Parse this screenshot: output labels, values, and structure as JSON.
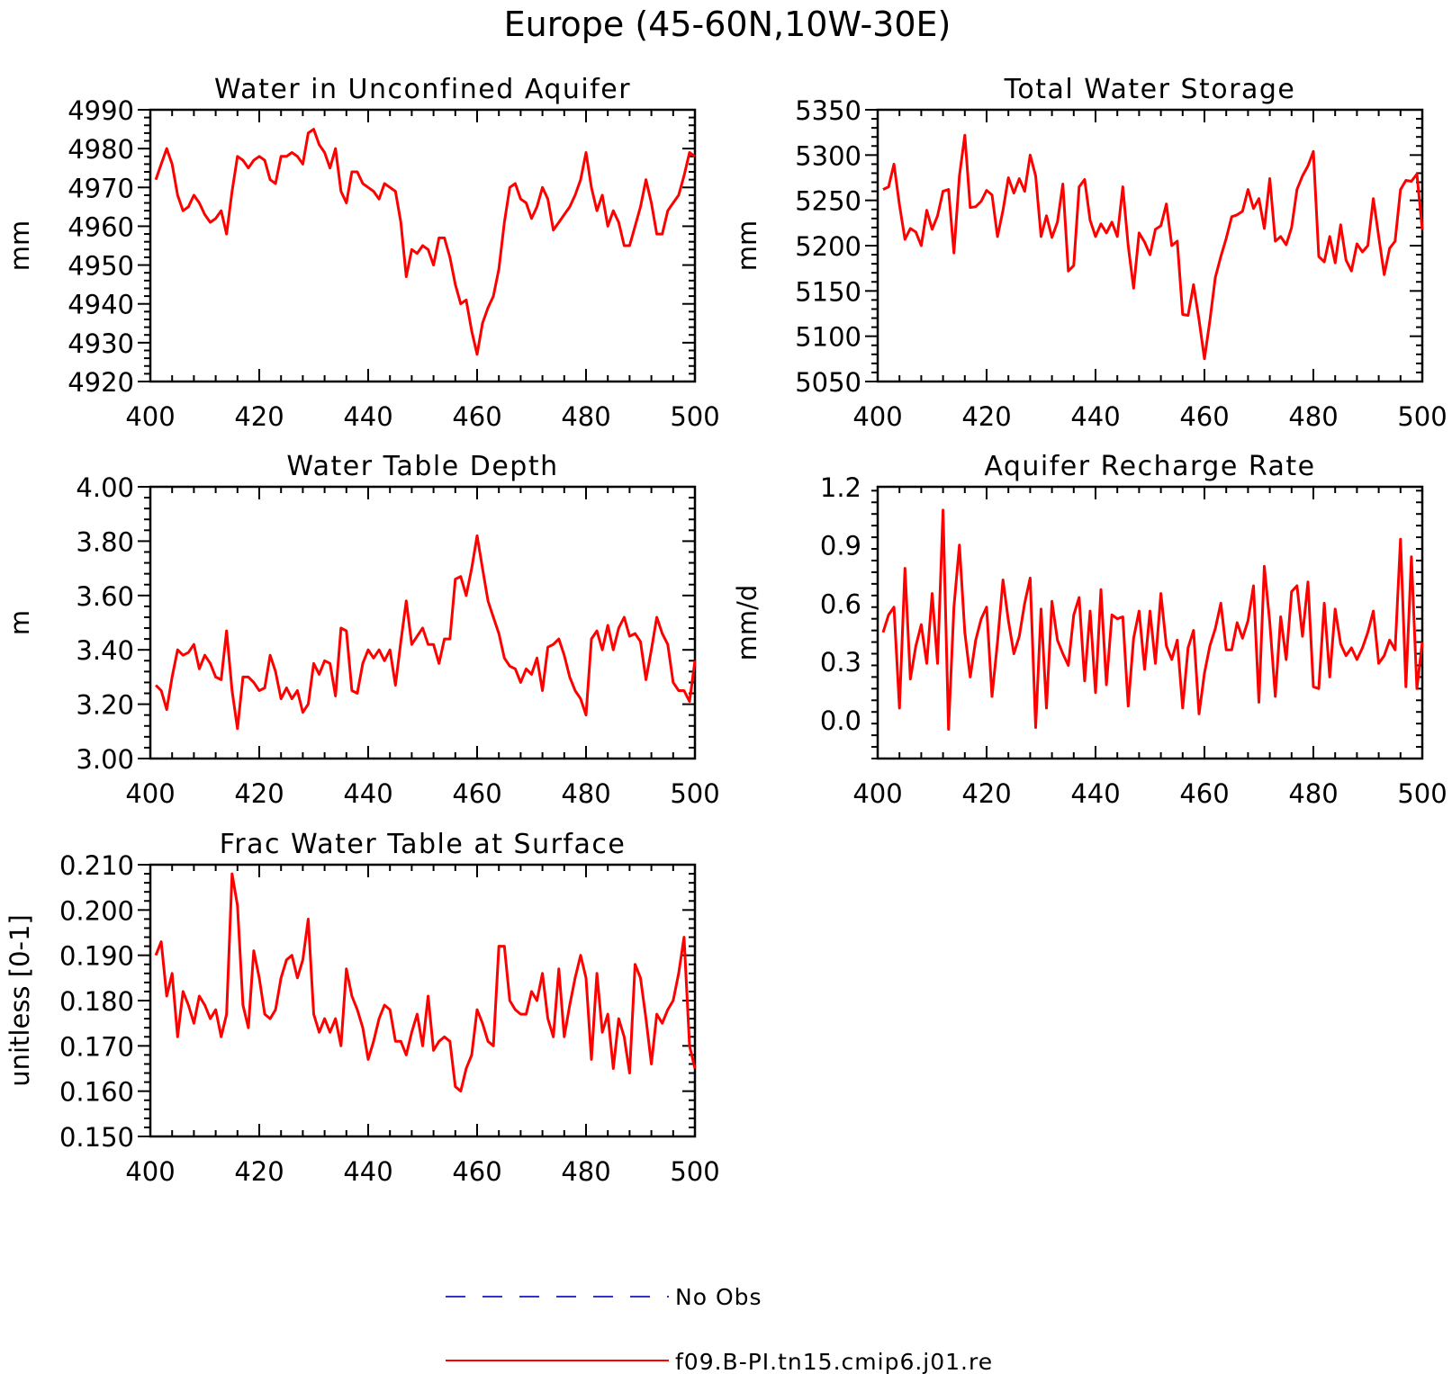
{
  "title": "Europe (45-60N,10W-30E)",
  "legend": [
    {
      "label": "No Obs",
      "color": "#3333cc",
      "dash": true
    },
    {
      "label": "f09.B-PI.tn15.cmip6.j01.re",
      "color": "#ff0000",
      "dash": false
    }
  ],
  "chart_data": [
    {
      "type": "line",
      "title": "Water in Unconfined Aquifer",
      "ylabel": "mm",
      "xlim": [
        400,
        500
      ],
      "ylim": [
        4920,
        4990
      ],
      "xticks": [
        400,
        420,
        440,
        460,
        480,
        500
      ],
      "yticks": [
        4920,
        4930,
        4940,
        4950,
        4960,
        4970,
        4980,
        4990
      ],
      "ytick_labels": [
        "4920",
        "4930",
        "4940",
        "4950",
        "4960",
        "4970",
        "4980",
        "4990"
      ],
      "x_start": 401,
      "series": [
        {
          "color": "#ff0000",
          "values": [
            4972,
            4976,
            4980,
            4976,
            4968,
            4964,
            4965,
            4968,
            4966,
            4963,
            4961,
            4962,
            4964,
            4958,
            4969,
            4978,
            4977,
            4975,
            4977,
            4978,
            4977,
            4972,
            4971,
            4978,
            4978,
            4979,
            4978,
            4976,
            4984,
            4985,
            4981,
            4979,
            4975,
            4980,
            4969,
            4966,
            4974,
            4974,
            4971,
            4970,
            4969,
            4967,
            4971,
            4970,
            4969,
            4961,
            4947,
            4954,
            4953,
            4955,
            4954,
            4950,
            4957,
            4957,
            4952,
            4945,
            4940,
            4941,
            4933,
            4927,
            4935,
            4939,
            4942,
            4949,
            4961,
            4970,
            4971,
            4967,
            4966,
            4962,
            4965,
            4970,
            4967,
            4959,
            4961,
            4963,
            4965,
            4968,
            4972,
            4979,
            4970,
            4964,
            4968,
            4960,
            4964,
            4961,
            4955,
            4955,
            4960,
            4965,
            4972,
            4966,
            4958,
            4958,
            4964,
            4966,
            4968,
            4973,
            4979,
            4978
          ]
        }
      ]
    },
    {
      "type": "line",
      "title": "Total Water Storage",
      "ylabel": "mm",
      "xlim": [
        400,
        500
      ],
      "ylim": [
        5050,
        5350
      ],
      "xticks": [
        400,
        420,
        440,
        460,
        480,
        500
      ],
      "yticks": [
        5050,
        5100,
        5150,
        5200,
        5250,
        5300,
        5350
      ],
      "ytick_labels": [
        "5050",
        "5100",
        "5150",
        "5200",
        "5250",
        "5300",
        "5350"
      ],
      "x_start": 401,
      "series": [
        {
          "color": "#ff0000",
          "values": [
            5262,
            5265,
            5290,
            5245,
            5207,
            5219,
            5215,
            5200,
            5239,
            5218,
            5233,
            5260,
            5262,
            5192,
            5277,
            5322,
            5242,
            5243,
            5249,
            5261,
            5256,
            5210,
            5239,
            5275,
            5258,
            5274,
            5260,
            5300,
            5277,
            5210,
            5233,
            5209,
            5226,
            5268,
            5172,
            5178,
            5265,
            5273,
            5228,
            5210,
            5224,
            5214,
            5226,
            5210,
            5265,
            5200,
            5153,
            5214,
            5204,
            5190,
            5218,
            5222,
            5246,
            5200,
            5205,
            5124,
            5123,
            5157,
            5118,
            5075,
            5117,
            5165,
            5188,
            5208,
            5232,
            5234,
            5238,
            5262,
            5241,
            5252,
            5219,
            5274,
            5205,
            5210,
            5201,
            5220,
            5262,
            5277,
            5288,
            5304,
            5188,
            5182,
            5210,
            5181,
            5223,
            5184,
            5172,
            5202,
            5193,
            5200,
            5252,
            5210,
            5168,
            5197,
            5205,
            5262,
            5272,
            5271,
            5279,
            5218
          ]
        }
      ]
    },
    {
      "type": "line",
      "title": "Water Table Depth",
      "ylabel": "m",
      "xlim": [
        400,
        500
      ],
      "ylim": [
        3.0,
        4.0
      ],
      "xticks": [
        400,
        420,
        440,
        460,
        480,
        500
      ],
      "yticks": [
        3.0,
        3.2,
        3.4,
        3.6,
        3.8,
        4.0
      ],
      "ytick_labels": [
        "3.00",
        "3.20",
        "3.40",
        "3.60",
        "3.80",
        "4.00"
      ],
      "x_start": 401,
      "series": [
        {
          "color": "#ff0000",
          "values": [
            3.27,
            3.25,
            3.18,
            3.3,
            3.4,
            3.38,
            3.39,
            3.42,
            3.33,
            3.38,
            3.35,
            3.3,
            3.29,
            3.47,
            3.25,
            3.11,
            3.3,
            3.3,
            3.28,
            3.25,
            3.26,
            3.38,
            3.32,
            3.22,
            3.26,
            3.22,
            3.25,
            3.17,
            3.2,
            3.35,
            3.31,
            3.36,
            3.35,
            3.23,
            3.48,
            3.47,
            3.25,
            3.24,
            3.35,
            3.4,
            3.37,
            3.4,
            3.36,
            3.4,
            3.27,
            3.43,
            3.58,
            3.42,
            3.45,
            3.48,
            3.42,
            3.42,
            3.35,
            3.44,
            3.44,
            3.66,
            3.67,
            3.6,
            3.7,
            3.82,
            3.7,
            3.58,
            3.52,
            3.46,
            3.37,
            3.34,
            3.33,
            3.28,
            3.33,
            3.31,
            3.37,
            3.25,
            3.41,
            3.42,
            3.44,
            3.38,
            3.3,
            3.25,
            3.22,
            3.16,
            3.44,
            3.47,
            3.4,
            3.49,
            3.4,
            3.48,
            3.52,
            3.45,
            3.46,
            3.43,
            3.29,
            3.4,
            3.52,
            3.46,
            3.42,
            3.28,
            3.25,
            3.25,
            3.21,
            3.36
          ]
        }
      ]
    },
    {
      "type": "line",
      "title": "Aquifer Recharge Rate",
      "ylabel": "mm/d",
      "xlim": [
        400,
        500
      ],
      "ylim": [
        -0.2,
        1.2
      ],
      "xticks": [
        400,
        420,
        440,
        460,
        480,
        500
      ],
      "yticks": [
        0.0,
        0.3,
        0.6,
        0.9,
        1.2
      ],
      "ytick_labels": [
        "0.0",
        "0.3",
        "0.6",
        "0.9",
        "1.2"
      ],
      "x_start": 401,
      "series": [
        {
          "color": "#ff0000",
          "values": [
            0.45,
            0.54,
            0.58,
            0.06,
            0.78,
            0.21,
            0.38,
            0.49,
            0.29,
            0.65,
            0.29,
            1.08,
            -0.05,
            0.58,
            0.9,
            0.45,
            0.22,
            0.41,
            0.52,
            0.58,
            0.12,
            0.4,
            0.72,
            0.51,
            0.34,
            0.43,
            0.6,
            0.73,
            -0.04,
            0.57,
            0.06,
            0.61,
            0.41,
            0.34,
            0.28,
            0.54,
            0.63,
            0.2,
            0.56,
            0.14,
            0.67,
            0.18,
            0.54,
            0.52,
            0.53,
            0.07,
            0.42,
            0.56,
            0.26,
            0.56,
            0.29,
            0.65,
            0.38,
            0.31,
            0.41,
            0.06,
            0.37,
            0.46,
            0.03,
            0.24,
            0.38,
            0.47,
            0.6,
            0.36,
            0.36,
            0.5,
            0.42,
            0.51,
            0.69,
            0.09,
            0.79,
            0.5,
            0.12,
            0.53,
            0.31,
            0.66,
            0.69,
            0.43,
            0.71,
            0.17,
            0.16,
            0.6,
            0.22,
            0.57,
            0.39,
            0.33,
            0.37,
            0.31,
            0.37,
            0.45,
            0.56,
            0.29,
            0.33,
            0.41,
            0.36,
            0.93,
            0.17,
            0.84,
            0.16,
            0.4
          ]
        }
      ]
    },
    {
      "type": "line",
      "title": "Frac Water Table at Surface",
      "ylabel": "unitless [0-1]",
      "xlim": [
        400,
        500
      ],
      "ylim": [
        0.15,
        0.21
      ],
      "xticks": [
        400,
        420,
        440,
        460,
        480,
        500
      ],
      "yticks": [
        0.15,
        0.16,
        0.17,
        0.18,
        0.19,
        0.2,
        0.21
      ],
      "ytick_labels": [
        "0.150",
        "0.160",
        "0.170",
        "0.180",
        "0.190",
        "0.200",
        "0.210"
      ],
      "x_start": 401,
      "series": [
        {
          "color": "#ff0000",
          "values": [
            0.19,
            0.193,
            0.181,
            0.186,
            0.172,
            0.182,
            0.179,
            0.175,
            0.181,
            0.179,
            0.176,
            0.178,
            0.172,
            0.177,
            0.208,
            0.201,
            0.179,
            0.174,
            0.191,
            0.185,
            0.177,
            0.176,
            0.178,
            0.185,
            0.189,
            0.19,
            0.185,
            0.189,
            0.198,
            0.177,
            0.173,
            0.176,
            0.173,
            0.176,
            0.17,
            0.187,
            0.181,
            0.178,
            0.174,
            0.167,
            0.171,
            0.176,
            0.179,
            0.178,
            0.171,
            0.171,
            0.168,
            0.173,
            0.177,
            0.17,
            0.181,
            0.169,
            0.171,
            0.172,
            0.171,
            0.161,
            0.16,
            0.165,
            0.168,
            0.178,
            0.175,
            0.171,
            0.17,
            0.192,
            0.192,
            0.18,
            0.178,
            0.177,
            0.177,
            0.182,
            0.18,
            0.186,
            0.176,
            0.172,
            0.187,
            0.172,
            0.179,
            0.185,
            0.19,
            0.185,
            0.167,
            0.186,
            0.173,
            0.177,
            0.165,
            0.176,
            0.172,
            0.164,
            0.188,
            0.185,
            0.176,
            0.166,
            0.177,
            0.175,
            0.178,
            0.18,
            0.186,
            0.194,
            0.17,
            0.165
          ]
        }
      ]
    }
  ]
}
